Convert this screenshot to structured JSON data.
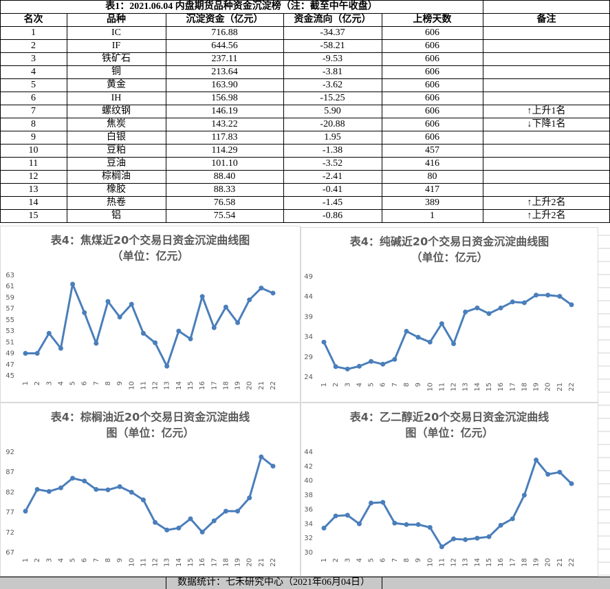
{
  "table": {
    "title": "表1：2021.06.04 内盘期货品种资金沉淀榜（注：截至中午收盘）",
    "columns": [
      "名次",
      "品种",
      "沉淀资金（亿元）",
      "资金流向（亿元）",
      "上榜天数",
      "备注"
    ],
    "rows": [
      [
        "1",
        "IC",
        "716.88",
        "-34.37",
        "606"
      ],
      [
        "2",
        "IF",
        "644.56",
        "-58.21",
        "606"
      ],
      [
        "3",
        "铁矿石",
        "237.11",
        "-9.53",
        "606"
      ],
      [
        "4",
        "铜",
        "213.64",
        "-3.81",
        "606"
      ],
      [
        "5",
        "黄金",
        "163.90",
        "-3.62",
        "606"
      ],
      [
        "6",
        "IH",
        "156.98",
        "-15.25",
        "606"
      ],
      [
        "7",
        "螺纹钢",
        "146.19",
        "5.90",
        "606",
        "↑上升1名"
      ],
      [
        "8",
        "焦炭",
        "143.22",
        "-20.88",
        "606",
        "↓下降1名"
      ],
      [
        "9",
        "白银",
        "117.83",
        "1.95",
        "606"
      ],
      [
        "10",
        "豆粕",
        "114.29",
        "-1.38",
        "457"
      ],
      [
        "11",
        "豆油",
        "101.10",
        "-3.52",
        "416"
      ],
      [
        "12",
        "棕榈油",
        "88.40",
        "-2.41",
        "80"
      ],
      [
        "13",
        "橡胶",
        "88.33",
        "-0.41",
        "417"
      ],
      [
        "14",
        "热卷",
        "76.58",
        "-1.45",
        "389",
        "↑上升2名"
      ],
      [
        "15",
        "铝",
        "75.54",
        "-0.86",
        "1",
        "↑上升2名"
      ]
    ]
  },
  "chart_data": [
    {
      "type": "line",
      "title": "表4：焦煤近20个交易日资金沉淀曲线图",
      "subtitle": "（单位：亿元）",
      "categories": [
        "1",
        "2",
        "3",
        "4",
        "5",
        "6",
        "7",
        "8",
        "9",
        "10",
        "11",
        "12",
        "13",
        "14",
        "15",
        "16",
        "17",
        "18",
        "19",
        "20",
        "21",
        "22"
      ],
      "values": [
        49,
        49,
        52.6,
        49.9,
        61.4,
        56.3,
        50.8,
        58.3,
        55.5,
        57.8,
        52.6,
        50.9,
        46.7,
        53.0,
        51.6,
        59.2,
        53.6,
        57.3,
        54.5,
        58.6,
        60.7,
        59.8
      ],
      "color": "#4a7ebb",
      "ylim": [
        45,
        63
      ],
      "yticks": [
        45,
        47,
        49,
        51,
        53,
        55,
        57,
        59,
        61,
        63
      ],
      "grid": false
    },
    {
      "type": "line",
      "title": "表4：纯碱近20个交易日资金沉淀曲线图",
      "subtitle": "（单位：亿元）",
      "categories": [
        "1",
        "2",
        "3",
        "4",
        "5",
        "6",
        "7",
        "8",
        "9",
        "10",
        "11",
        "12",
        "13",
        "14",
        "15",
        "16",
        "17",
        "18",
        "19",
        "20",
        "21",
        "22"
      ],
      "values": [
        32.7,
        26.6,
        26.0,
        26.7,
        27.9,
        27.2,
        28.4,
        35.4,
        33.9,
        32.7,
        37.3,
        32.3,
        40.2,
        41.2,
        39.8,
        41.2,
        42.7,
        42.5,
        44.4,
        44.4,
        44.1,
        42.0
      ],
      "color": "#4a7ebb",
      "ylim": [
        24,
        49
      ],
      "yticks": [
        24,
        29,
        34,
        39,
        44,
        49
      ],
      "grid": false
    },
    {
      "type": "line",
      "title": "表4：棕榈油近20个交易日资金沉淀曲线",
      "subtitle": "图（单位：亿元）",
      "categories": [
        "1",
        "2",
        "3",
        "4",
        "5",
        "6",
        "7",
        "8",
        "9",
        "10",
        "11",
        "12",
        "13",
        "14",
        "15",
        "16",
        "17",
        "18",
        "19",
        "20",
        "21",
        "22"
      ],
      "values": [
        77.3,
        82.7,
        82.2,
        83.1,
        85.5,
        84.8,
        82.7,
        82.6,
        83.4,
        82.0,
        80.1,
        74.5,
        72.6,
        73.1,
        75.4,
        72.1,
        74.9,
        77.3,
        77.3,
        80.6,
        90.8,
        88.5
      ],
      "color": "#4a7ebb",
      "ylim": [
        67,
        92
      ],
      "yticks": [
        67,
        72,
        77,
        82,
        87,
        92
      ],
      "grid": false
    },
    {
      "type": "line",
      "title": "表4：乙二醇近20个交易日资金沉淀曲线",
      "subtitle": "图（单位：亿元）",
      "categories": [
        "1",
        "2",
        "3",
        "4",
        "5",
        "6",
        "7",
        "8",
        "9",
        "10",
        "11",
        "12",
        "13",
        "14",
        "15",
        "16",
        "17",
        "18",
        "19",
        "20",
        "21",
        "22"
      ],
      "values": [
        33.4,
        35.1,
        35.2,
        34.0,
        36.9,
        37.0,
        34.1,
        33.9,
        33.9,
        33.5,
        30.8,
        31.9,
        31.8,
        32.0,
        32.2,
        33.8,
        34.7,
        38.0,
        42.9,
        40.9,
        41.2,
        39.6
      ],
      "color": "#4a7ebb",
      "ylim": [
        30,
        44
      ],
      "yticks": [
        30,
        32,
        34,
        36,
        38,
        40,
        42,
        44
      ],
      "grid": false
    }
  ],
  "footer": "数据统计：七禾研究中心（2021年06月04日）"
}
